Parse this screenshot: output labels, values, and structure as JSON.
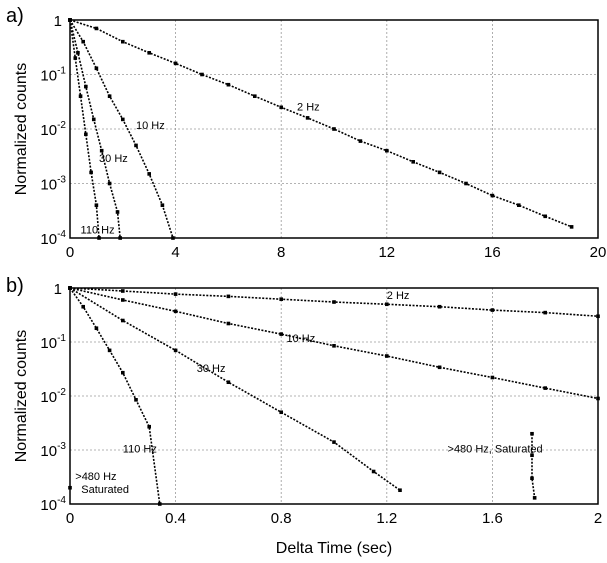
{
  "chart_data": [
    {
      "type": "scatter",
      "panel": "a)",
      "xlabel": "",
      "ylabel": "Normalized counts",
      "xlim": [
        0,
        20
      ],
      "ylim": [
        0.0001,
        1
      ],
      "yscale": "log",
      "grid": true,
      "x_ticks": [
        0,
        4,
        8,
        12,
        16,
        20
      ],
      "x_tick_labels": [
        "0",
        "4",
        "8",
        "12",
        "16",
        "20"
      ],
      "y_ticks": [
        1,
        0.1,
        0.01,
        0.001,
        0.0001
      ],
      "y_tick_labels": [
        [
          "1",
          ""
        ],
        [
          "10",
          "-1"
        ],
        [
          "10",
          "-2"
        ],
        [
          "10",
          "-3"
        ],
        [
          "10",
          "-4"
        ]
      ],
      "series": [
        {
          "name": "2 Hz",
          "label_pos": [
            8.6,
            0.022
          ],
          "points": [
            [
              0,
              1
            ],
            [
              1,
              0.7
            ],
            [
              2,
              0.4
            ],
            [
              3,
              0.25
            ],
            [
              4,
              0.16
            ],
            [
              5,
              0.1
            ],
            [
              6,
              0.065
            ],
            [
              7,
              0.04
            ],
            [
              8,
              0.025
            ],
            [
              9,
              0.016
            ],
            [
              10,
              0.01
            ],
            [
              11,
              0.006
            ],
            [
              12,
              0.004
            ],
            [
              13,
              0.0025
            ],
            [
              14,
              0.0016
            ],
            [
              15,
              0.001
            ],
            [
              16,
              0.0006
            ],
            [
              17,
              0.0004
            ],
            [
              18,
              0.00025
            ],
            [
              19,
              0.00016
            ]
          ]
        },
        {
          "name": "10 Hz",
          "label_pos": [
            2.5,
            0.01
          ],
          "points": [
            [
              0,
              1
            ],
            [
              0.5,
              0.4
            ],
            [
              1,
              0.13
            ],
            [
              1.5,
              0.04
            ],
            [
              2,
              0.015
            ],
            [
              2.5,
              0.005
            ],
            [
              3,
              0.0015
            ],
            [
              3.5,
              0.0004
            ],
            [
              3.9,
              0.0001
            ]
          ]
        },
        {
          "name": "30 Hz",
          "label_pos": [
            1.1,
            0.0025
          ],
          "points": [
            [
              0,
              1
            ],
            [
              0.3,
              0.25
            ],
            [
              0.6,
              0.06
            ],
            [
              0.9,
              0.015
            ],
            [
              1.2,
              0.004
            ],
            [
              1.5,
              0.001
            ],
            [
              1.8,
              0.0003
            ],
            [
              1.9,
              0.0001
            ]
          ]
        },
        {
          "name": "110 Hz",
          "label_pos": [
            0.4,
            0.00012
          ],
          "points": [
            [
              0,
              1
            ],
            [
              0.2,
              0.2
            ],
            [
              0.4,
              0.04
            ],
            [
              0.6,
              0.008
            ],
            [
              0.8,
              0.0016
            ],
            [
              1.0,
              0.0004
            ],
            [
              1.1,
              0.0001
            ]
          ]
        }
      ]
    },
    {
      "type": "scatter",
      "panel": "b)",
      "xlabel": "Delta Time (sec)",
      "ylabel": "Normalized counts",
      "xlim": [
        0,
        2
      ],
      "ylim": [
        0.0001,
        1
      ],
      "yscale": "log",
      "grid": true,
      "x_ticks": [
        0,
        0.4,
        0.8,
        1.2,
        1.6,
        2
      ],
      "x_tick_labels": [
        "0",
        "0.4",
        "0.8",
        "1.2",
        "1.6",
        "2"
      ],
      "y_ticks": [
        1,
        0.1,
        0.01,
        0.001,
        0.0001
      ],
      "y_tick_labels": [
        [
          "1",
          ""
        ],
        [
          "10",
          "-1"
        ],
        [
          "10",
          "-2"
        ],
        [
          "10",
          "-3"
        ],
        [
          "10",
          "-4"
        ]
      ],
      "series": [
        {
          "name": "2 Hz",
          "label_pos": [
            1.2,
            0.62
          ],
          "points": [
            [
              0,
              1
            ],
            [
              0.2,
              0.88
            ],
            [
              0.4,
              0.77
            ],
            [
              0.6,
              0.7
            ],
            [
              0.8,
              0.62
            ],
            [
              1.0,
              0.55
            ],
            [
              1.2,
              0.5
            ],
            [
              1.4,
              0.45
            ],
            [
              1.6,
              0.39
            ],
            [
              1.8,
              0.35
            ],
            [
              2.0,
              0.3
            ]
          ]
        },
        {
          "name": "10 Hz",
          "label_pos": [
            0.82,
            0.1
          ],
          "points": [
            [
              0,
              1
            ],
            [
              0.2,
              0.6
            ],
            [
              0.4,
              0.37
            ],
            [
              0.6,
              0.22
            ],
            [
              0.8,
              0.14
            ],
            [
              1.0,
              0.085
            ],
            [
              1.2,
              0.055
            ],
            [
              1.4,
              0.034
            ],
            [
              1.6,
              0.022
            ],
            [
              1.8,
              0.014
            ],
            [
              2.0,
              0.009
            ]
          ]
        },
        {
          "name": "30 Hz",
          "label_pos": [
            0.48,
            0.028
          ],
          "points": [
            [
              0,
              1
            ],
            [
              0.2,
              0.25
            ],
            [
              0.4,
              0.07
            ],
            [
              0.6,
              0.018
            ],
            [
              0.8,
              0.005
            ],
            [
              1.0,
              0.0014
            ],
            [
              1.15,
              0.0004
            ],
            [
              1.25,
              0.00018
            ]
          ]
        },
        {
          "name": "110 Hz",
          "label_pos": [
            0.2,
            0.0009
          ],
          "points": [
            [
              0,
              1
            ],
            [
              0.05,
              0.45
            ],
            [
              0.1,
              0.18
            ],
            [
              0.15,
              0.07
            ],
            [
              0.2,
              0.027
            ],
            [
              0.25,
              0.0085
            ],
            [
              0.3,
              0.0027
            ],
            [
              0.34,
              0.0001
            ]
          ]
        },
        {
          "name": ">480 Hz, Saturated",
          "label_pos": [
            1.43,
            0.0009
          ],
          "points": [
            [
              1.75,
              0.002
            ],
            [
              1.75,
              0.0008
            ],
            [
              1.75,
              0.0003
            ],
            [
              1.76,
              0.00013
            ]
          ]
        },
        {
          "name": ">480 Hz",
          "name2": "Saturated",
          "label_pos": [
            0.02,
            0.00028
          ],
          "points": [
            [
              0.0,
              0.0002
            ]
          ]
        }
      ]
    }
  ]
}
